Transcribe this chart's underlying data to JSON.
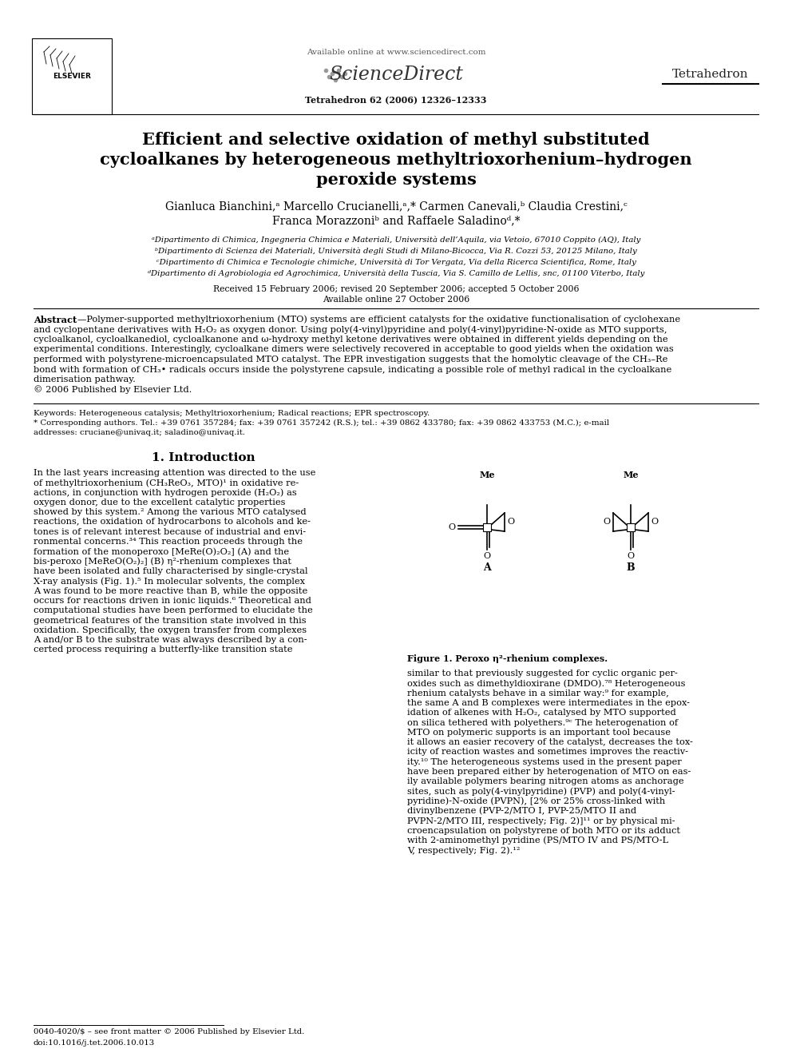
{
  "bg_color": "#ffffff",
  "available_online": "Available online at www.sciencedirect.com",
  "sciencedirect": "ScienceDirect",
  "journal_info": "Tetrahedron 62 (2006) 12326–12333",
  "journal_name": "Tetrahedron",
  "title_line1": "Efficient and selective oxidation of methyl substituted",
  "title_line2": "cycloalkanes by heterogeneous methyltrioxorhenium–hydrogen",
  "title_line3": "peroxide systems",
  "author_line1": "Gianluca Bianchini,ᵃ Marcello Crucianelli,ᵃ,* Carmen Canevali,ᵇ Claudia Crestini,ᶜ",
  "author_line2": "Franca Morazzoniᵇ and Raffaele Saladinoᵈ,*",
  "affil_a": "ᵃDipartimento di Chimica, Ingegneria Chimica e Materiali, Università dell’Aquila, via Vetoio, 67010 Coppito (AQ), Italy",
  "affil_b": "ᵇDipartimento di Scienza dei Materiali, Università degli Studi di Milano-Bicocca, Via R. Cozzi 53, 20125 Milano, Italy",
  "affil_c": "ᶜDipartimento di Chimica e Tecnologie chimiche, Università di Tor Vergata, Via della Ricerca Scientifica, Rome, Italy",
  "affil_d": "ᵈDipartimento di Agrobiologia ed Agrochimica, Università della Tuscia, Via S. Camillo de Lellis, snc, 01100 Viterbo, Italy",
  "received": "Received 15 February 2006; revised 20 September 2006; accepted 5 October 2006",
  "available": "Available online 27 October 2006",
  "abstract_lines": [
    "Abstract—Polymer-supported methyltrioxorhenium (MTO) systems are efficient catalysts for the oxidative functionalisation of cyclohexane",
    "and cyclopentane derivatives with H₂O₂ as oxygen donor. Using poly(4-vinyl)pyridine and poly(4-vinyl)pyridine-N-oxide as MTO supports,",
    "cycloalkanol, cycloalkanediol, cycloalkanone and ω-hydroxy methyl ketone derivatives were obtained in different yields depending on the",
    "experimental conditions. Interestingly, cycloalkane dimers were selectively recovered in acceptable to good yields when the oxidation was",
    "performed with polystyrene-microencapsulated MTO catalyst. The EPR investigation suggests that the homolytic cleavage of the CH₃–Re",
    "bond with formation of CH₃• radicals occurs inside the polystyrene capsule, indicating a possible role of methyl radical in the cycloalkane",
    "dimerisation pathway.",
    "© 2006 Published by Elsevier Ltd."
  ],
  "kw_line1": "Keywords: Heterogeneous catalysis; Methyltrioxorhenium; Radical reactions; EPR spectroscopy.",
  "kw_line2": "* Corresponding authors. Tel.: +39 0761 357284; fax: +39 0761 357242 (R.S.); tel.: +39 0862 433780; fax: +39 0862 433753 (M.C.); e-mail",
  "kw_line3": "addresses: cruciane@univaq.it; saladino@univaq.it.",
  "intro_heading": "1. Introduction",
  "left_col_lines": [
    "In the last years increasing attention was directed to the use",
    "of methyltrioxorhenium (CH₃ReO₃, MTO)¹ in oxidative re-",
    "actions, in conjunction with hydrogen peroxide (H₂O₂) as",
    "oxygen donor, due to the excellent catalytic properties",
    "showed by this system.² Among the various MTO catalysed",
    "reactions, the oxidation of hydrocarbons to alcohols and ke-",
    "tones is of relevant interest because of industrial and envi-",
    "ronmental concerns.³⁴ This reaction proceeds through the",
    "formation of the monoperoxo [MeRe(O)₂O₂] (A) and the",
    "bis-peroxo [MeReO(O₂)₂] (B) η²-rhenium complexes that",
    "have been isolated and fully characterised by single-crystal",
    "X-ray analysis (Fig. 1).⁵ In molecular solvents, the complex",
    "A was found to be more reactive than B, while the opposite",
    "occurs for reactions driven in ionic liquids.⁶ Theoretical and",
    "computational studies have been performed to elucidate the",
    "geometrical features of the transition state involved in this",
    "oxidation. Specifically, the oxygen transfer from complexes",
    "A and/or B to the substrate was always described by a con-",
    "certed process requiring a butterfly-like transition state"
  ],
  "fig1_caption": "Figure 1. Peroxo η²-rhenium complexes.",
  "right_col_lines": [
    "similar to that previously suggested for cyclic organic per-",
    "oxides such as dimethyldioxirane (DMDO).⁷⁸ Heterogeneous",
    "rhenium catalysts behave in a similar way:⁹ for example,",
    "the same A and B complexes were intermediates in the epox-",
    "idation of alkenes with H₂O₂, catalysed by MTO supported",
    "on silica tethered with polyethers.⁹ᶜ The heterogenation of",
    "MTO on polymeric supports is an important tool because",
    "it allows an easier recovery of the catalyst, decreases the tox-",
    "icity of reaction wastes and sometimes improves the reactiv-",
    "ity.¹⁰ The heterogeneous systems used in the present paper",
    "have been prepared either by heterogenation of MTO on eas-",
    "ily available polymers bearing nitrogen atoms as anchorage",
    "sites, such as poly(4-vinylpyridine) (PVP) and poly(4-vinyl-",
    "pyridine)-N-oxide (PVPN), [2% or 25% cross-linked with",
    "divinylbenzene (PVP-2/MTO I, PVP-25/MTO II and",
    "PVPN-2/MTO III, respectively; Fig. 2)]¹¹ or by physical mi-",
    "croencapsulation on polystyrene of both MTO or its adduct",
    "with 2-aminomethyl pyridine (PS/MTO IV and PS/MTO-L",
    "V, respectively; Fig. 2).¹²"
  ],
  "footer_line1": "0040-4020/$ – see front matter © 2006 Published by Elsevier Ltd.",
  "footer_line2": "doi:10.1016/j.tet.2006.10.013"
}
